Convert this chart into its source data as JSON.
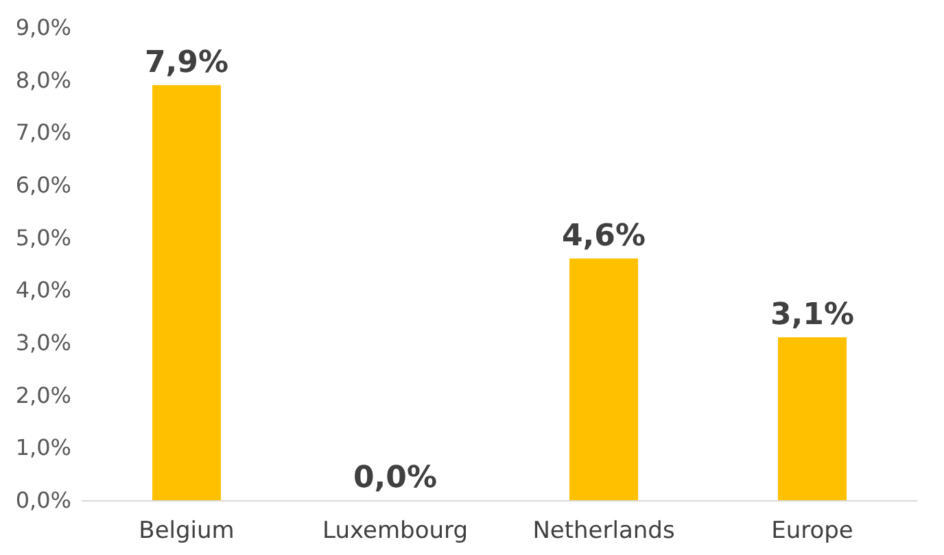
{
  "chart_data": {
    "type": "bar",
    "categories": [
      "Belgium",
      "Luxembourg",
      "Netherlands",
      "Europe"
    ],
    "values": [
      7.9,
      0.0,
      4.6,
      3.1
    ],
    "color": "#ffc000",
    "value_labels": [
      "7,9%",
      "0,0%",
      "4,6%",
      "3,1%"
    ],
    "ylim": [
      0,
      9
    ],
    "yticks": [
      {
        "value": 0,
        "label": "0,0%"
      },
      {
        "value": 1,
        "label": "1,0%"
      },
      {
        "value": 2,
        "label": "2,0%"
      },
      {
        "value": 3,
        "label": "3,0%"
      },
      {
        "value": 4,
        "label": "4,0%"
      },
      {
        "value": 5,
        "label": "5,0%"
      },
      {
        "value": 6,
        "label": "6,0%"
      },
      {
        "value": 7,
        "label": "7,0%"
      },
      {
        "value": 8,
        "label": "8,0%"
      },
      {
        "value": 9,
        "label": "9,0%"
      }
    ],
    "grid": false
  }
}
